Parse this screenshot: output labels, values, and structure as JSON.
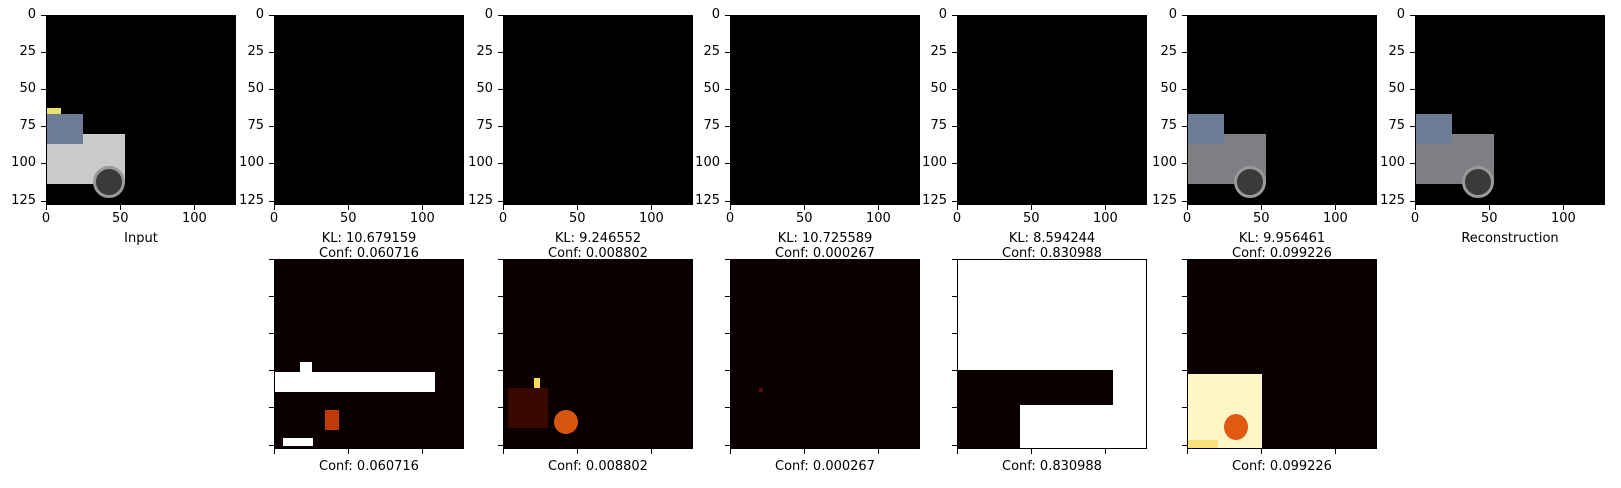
{
  "axis": {
    "y_ticks": [
      "0",
      "25",
      "50",
      "75",
      "100",
      "125"
    ],
    "x_ticks": [
      "0",
      "50",
      "100"
    ]
  },
  "top_row": [
    {
      "caption": "Input"
    },
    {
      "kl": "KL: 10.679159",
      "conf": "Conf: 0.060716"
    },
    {
      "kl": "KL: 9.246552",
      "conf": "Conf: 0.008802"
    },
    {
      "kl": "KL: 10.725589",
      "conf": "Conf: 0.000267"
    },
    {
      "kl": "KL: 8.594244",
      "conf": "Conf: 0.830988"
    },
    {
      "kl": "KL: 9.956461",
      "conf": "Conf: 0.099226"
    },
    {
      "caption": "Reconstruction"
    }
  ],
  "bottom_row": [
    {
      "conf": "Conf: 0.060716"
    },
    {
      "conf": "Conf: 0.008802"
    },
    {
      "conf": "Conf: 0.000267"
    },
    {
      "conf": "Conf: 0.830988"
    },
    {
      "conf": "Conf: 0.099226"
    }
  ]
}
